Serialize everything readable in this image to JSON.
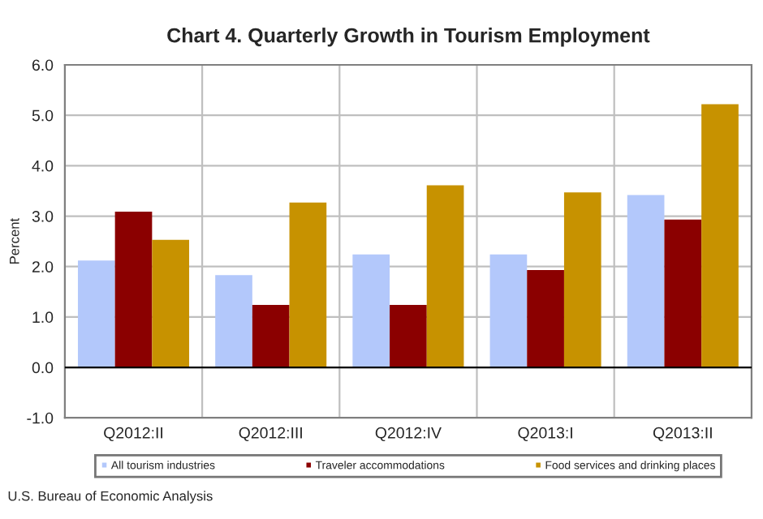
{
  "chart_data": {
    "type": "bar",
    "title": "Chart 4. Quarterly Growth in Tourism Employment",
    "ylabel": "Percent",
    "categories": [
      "Q2012:II",
      "Q2012:III",
      "Q2012:IV",
      "Q2013:I",
      "Q2013:II"
    ],
    "series": [
      {
        "name": "All tourism industries",
        "color": "#b3c8fb",
        "values": [
          2.12,
          1.83,
          2.24,
          2.24,
          3.42
        ]
      },
      {
        "name": "Traveler accommodations",
        "color": "#8b0000",
        "values": [
          3.09,
          1.24,
          1.24,
          1.93,
          2.93
        ]
      },
      {
        "name": "Food services and drinking places",
        "color": "#c79200",
        "values": [
          2.53,
          3.27,
          3.61,
          3.47,
          5.22
        ]
      }
    ],
    "ylim": [
      -1,
      6
    ],
    "yticks": [
      {
        "value": -1,
        "label": "-1.0"
      },
      {
        "value": 0,
        "label": "0.0"
      },
      {
        "value": 1,
        "label": "1.0"
      },
      {
        "value": 2,
        "label": "2.0"
      },
      {
        "value": 3,
        "label": "3.0"
      },
      {
        "value": 4,
        "label": "4.0"
      },
      {
        "value": 5,
        "label": "5.0"
      },
      {
        "value": 6,
        "label": "6.0"
      }
    ],
    "grid": true,
    "legend": "bottom",
    "annotations": [
      "U.S. Bureau of Economic Analysis"
    ]
  }
}
